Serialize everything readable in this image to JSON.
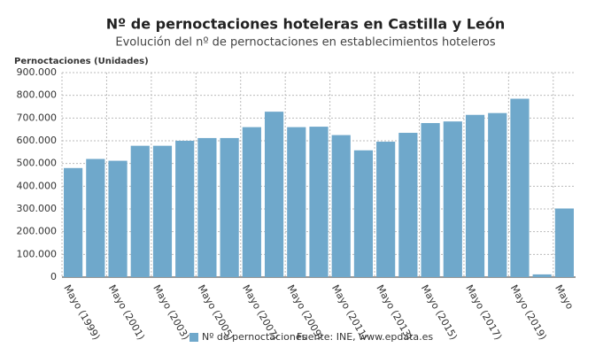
{
  "chart_data": {
    "type": "bar",
    "title": "Nº de pernoctaciones hoteleras en Castilla y León",
    "subtitle": "Evolución del nº de pernoctaciones en establecimientos hoteleros",
    "y_axis_label": "Pernoctaciones (Unidades)",
    "source": "Fuente: INE, www.epdata.es",
    "categories": [
      "Mayo (1999)",
      null,
      "Mayo (2001)",
      null,
      "Mayo (2003)",
      null,
      "Mayo (2005)",
      null,
      "Mayo (2007)",
      null,
      "Mayo (2009)",
      null,
      "Mayo (2011)",
      null,
      "Mayo (2013)",
      null,
      "Mayo (2015)",
      null,
      "Mayo (2017)",
      null,
      "Mayo (2019)",
      null,
      "Mayo"
    ],
    "series": [
      {
        "name": "Nº de pernoctaciones",
        "color": "#6fa8cb",
        "values": [
          480000,
          520000,
          512000,
          578000,
          578000,
          600000,
          612000,
          612000,
          660000,
          728000,
          660000,
          662000,
          625000,
          558000,
          596000,
          635000,
          678000,
          685000,
          714000,
          722000,
          785000,
          12000,
          302000
        ]
      }
    ],
    "ylim": [
      0,
      900000
    ],
    "yticks": [
      0,
      {
        "value": 100000,
        "label": "100.000"
      },
      {
        "value": 200000,
        "label": "200.000"
      },
      {
        "value": 300000,
        "label": "300.000"
      },
      {
        "value": 400000,
        "label": "400.000"
      },
      {
        "value": 500000,
        "label": "500.000"
      },
      {
        "value": 600000,
        "label": "600.000"
      },
      {
        "value": 700000,
        "label": "700.000"
      },
      {
        "value": 800000,
        "label": "800.000"
      },
      {
        "value": 900000,
        "label": "900.000"
      }
    ],
    "grid": true
  }
}
